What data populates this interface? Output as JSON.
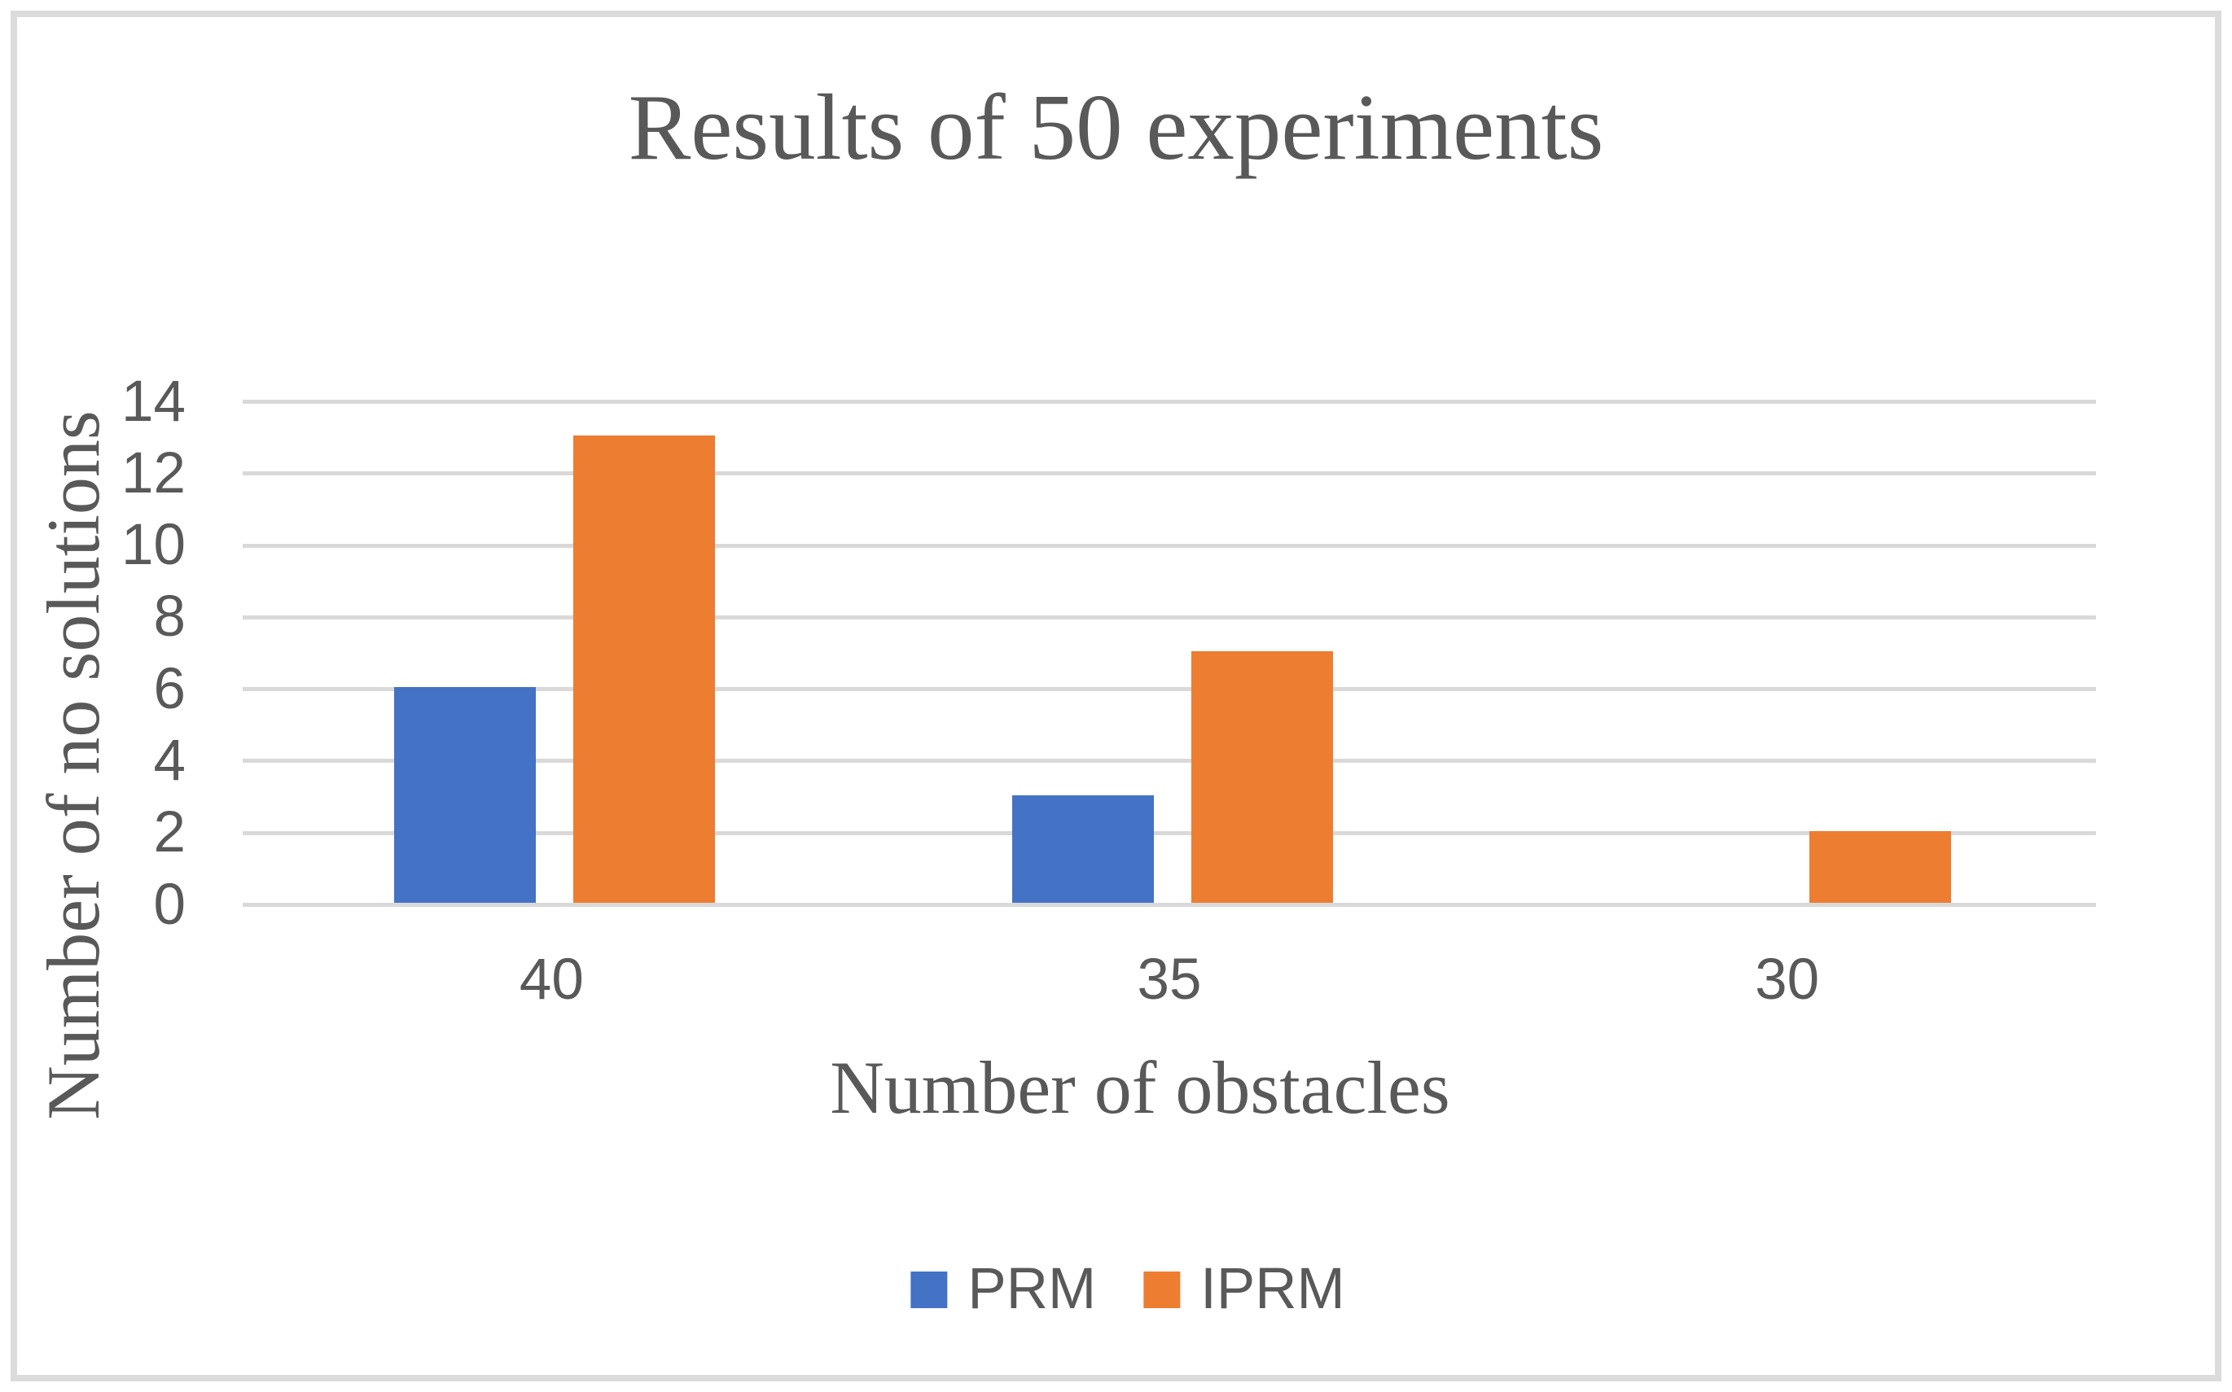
{
  "chart_data": {
    "type": "bar",
    "title": "Results of 50 experiments",
    "xlabel": "Number of obstacles",
    "ylabel": "Number of no solutions",
    "categories": [
      "40",
      "35",
      "30"
    ],
    "series": [
      {
        "name": "PRM",
        "color": "#4472C4",
        "values": [
          6,
          3,
          0
        ]
      },
      {
        "name": "IPRM",
        "color": "#ED7D31",
        "values": [
          13,
          7,
          2
        ]
      }
    ],
    "ylim": [
      0,
      14
    ],
    "yticks": [
      0,
      2,
      4,
      6,
      8,
      10,
      12,
      14
    ],
    "grid": "horizontal",
    "legend_position": "bottom"
  },
  "colors": {
    "text": "#595959",
    "gridline": "#D9D9D9",
    "background": "#FFFFFF",
    "frame_border": "#DBDBDB"
  }
}
